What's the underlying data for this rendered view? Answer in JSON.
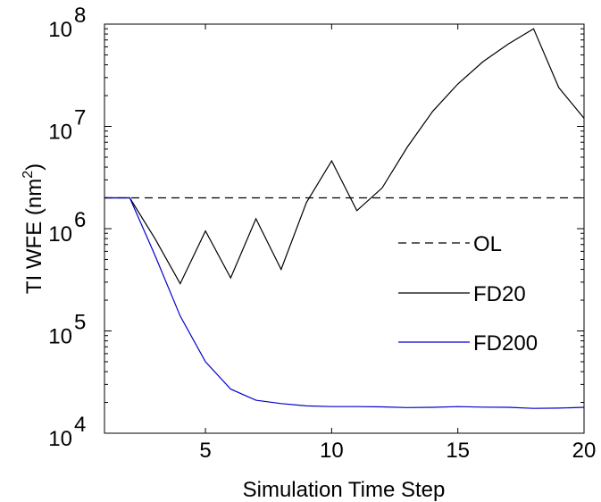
{
  "chart_data": {
    "type": "line",
    "xlabel": "Simulation Time Step",
    "ylabel_main": "TI WFE (nm",
    "ylabel_sup": "2",
    "ylabel_close": ")",
    "xlim": [
      1,
      20
    ],
    "ylim": [
      10000,
      100000000
    ],
    "yscale": "log",
    "grid": false,
    "legend_position": "right",
    "x_ticks": [
      5,
      10,
      15,
      20
    ],
    "x_tick_labels": [
      "5",
      "10",
      "15",
      "20"
    ],
    "y_ticks": [
      10000,
      100000,
      1000000,
      10000000,
      100000000
    ],
    "y_tick_base": "10",
    "y_tick_exps": [
      "4",
      "5",
      "6",
      "7",
      "8"
    ],
    "series": [
      {
        "name": "OL",
        "color": "#000000",
        "dash": "dashed",
        "x": [
          1,
          20
        ],
        "y": [
          2000000,
          2000000
        ]
      },
      {
        "name": "FD20",
        "color": "#000000",
        "dash": "solid",
        "x": [
          1,
          2,
          3,
          4,
          5,
          6,
          7,
          8,
          9,
          10,
          11,
          12,
          13,
          14,
          15,
          16,
          17,
          18,
          19,
          20
        ],
        "y": [
          2000000,
          2000000,
          800000,
          290000,
          950000,
          330000,
          1250000,
          400000,
          1800000,
          4600000,
          1500000,
          2500000,
          6300000,
          14000000,
          26000000,
          43000000,
          64000000,
          90000000,
          24000000,
          12000000
        ]
      },
      {
        "name": "FD200",
        "color": "#0000cc",
        "dash": "solid",
        "x": [
          1,
          2,
          3,
          4,
          5,
          6,
          7,
          8,
          9,
          10,
          11,
          12,
          13,
          14,
          15,
          16,
          17,
          18,
          19,
          20
        ],
        "y": [
          2000000,
          2000000,
          550000,
          140000,
          50000,
          27000,
          21000,
          19500,
          18500,
          18200,
          18200,
          18100,
          17800,
          17900,
          18200,
          18000,
          17900,
          17500,
          17600,
          17900
        ]
      }
    ]
  }
}
